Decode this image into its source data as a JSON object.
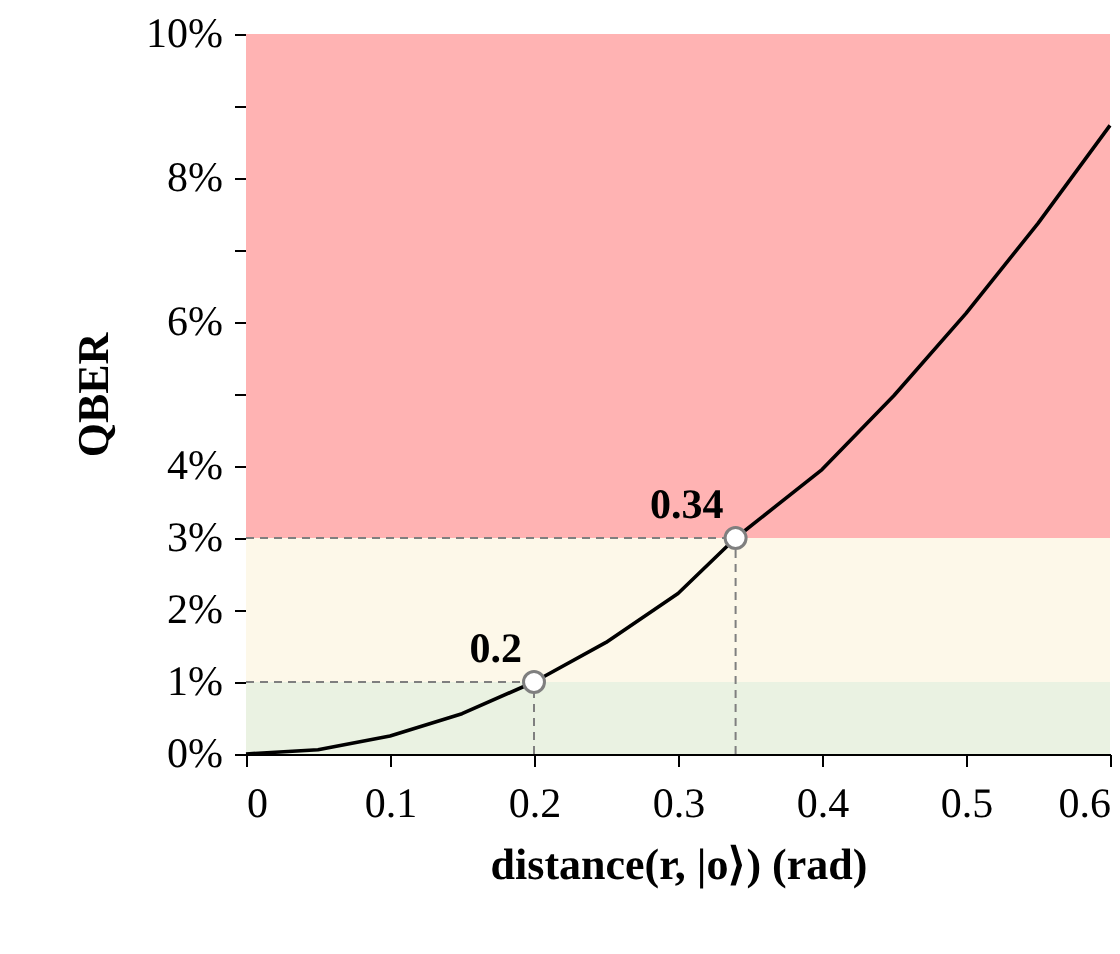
{
  "chart_data": {
    "type": "line",
    "xlabel": "distance(r, |o⟩) (rad)",
    "ylabel": "QBER",
    "xlim": [
      0,
      0.6
    ],
    "xticks": [
      0,
      0.1,
      0.2,
      0.3,
      0.4,
      0.5,
      0.6
    ],
    "ylim": [
      0,
      10
    ],
    "yticks": [
      {
        "value": 0,
        "label": "0%"
      },
      {
        "value": 1,
        "label": "1%"
      },
      {
        "value": 2,
        "label": "2%"
      },
      {
        "value": 3,
        "label": "3%"
      },
      {
        "value": 4,
        "label": "4%"
      },
      {
        "value": 5,
        "label": null
      },
      {
        "value": 6,
        "label": "6%"
      },
      {
        "value": 7,
        "label": null
      },
      {
        "value": 8,
        "label": "8%"
      },
      {
        "value": 9,
        "label": null
      },
      {
        "value": 10,
        "label": "10%"
      }
    ],
    "series": [
      {
        "type": "line",
        "color": "#000000",
        "x": [
          0,
          0.05,
          0.1,
          0.15,
          0.2,
          0.25,
          0.3,
          0.34,
          0.4,
          0.45,
          0.5,
          0.55,
          0.6
        ],
        "values": [
          0,
          0.06,
          0.25,
          0.56,
          1.0,
          1.55,
          2.23,
          3.0,
          3.95,
          4.98,
          6.12,
          7.37,
          8.73
        ]
      },
      {
        "type": "scatter",
        "color": "#7f7f7f",
        "marker": "circle",
        "x": [
          0.2,
          0.34
        ],
        "values": [
          1,
          3
        ]
      }
    ],
    "bands": [
      {
        "axis": "y",
        "from": 0,
        "to": 1,
        "color": "#eaf2e2"
      },
      {
        "axis": "y",
        "from": 1,
        "to": 3,
        "color": "#fdf8e9"
      },
      {
        "axis": "y",
        "from": 3,
        "to": 10,
        "color": "#ffb3b3"
      }
    ],
    "ref_lines": [
      {
        "axis": "y",
        "value": 1,
        "color": "#7f7f7f",
        "line_style": "dashed"
      },
      {
        "axis": "y",
        "value": 3,
        "color": "#7f7f7f",
        "line_style": "dashed"
      },
      {
        "axis": "x",
        "value": 0.2,
        "color": "#7f7f7f",
        "line_style": "dashed"
      },
      {
        "axis": "x",
        "value": 0.34,
        "color": "#7f7f7f",
        "line_style": "dashed"
      }
    ],
    "annotations": [
      {
        "text": "0.2",
        "x": 0.2,
        "y": 1
      },
      {
        "text": "0.34",
        "x": 0.34,
        "y": 3
      }
    ],
    "grid": false
  }
}
